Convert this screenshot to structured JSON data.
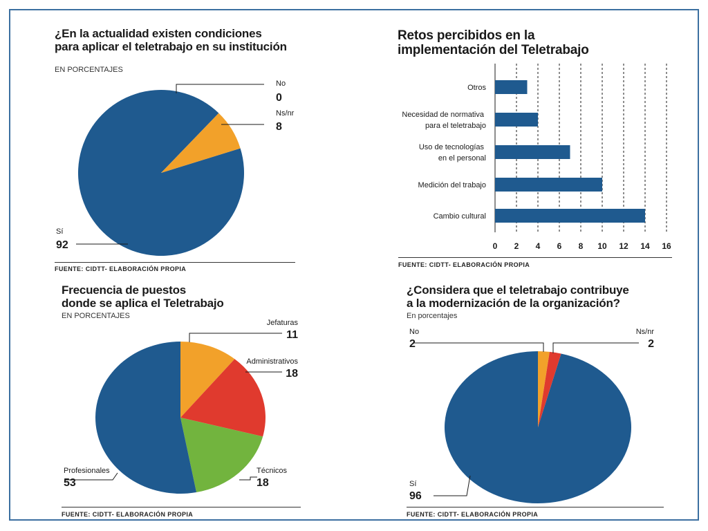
{
  "colors": {
    "blue": "#1f5a8f",
    "orange": "#f2a12a",
    "red": "#e03a2e",
    "green": "#72b43e",
    "border": "#3b6fa0"
  },
  "charts": {
    "c1": {
      "title1": "¿En la actualidad existen condiciones",
      "title2": "para aplicar el teletrabajo en su institución",
      "subtitle": "EN PORCENTAJES",
      "source": "FUENTE: CIDTT- ELABORACIÓN PROPIA"
    },
    "c2": {
      "title1": "Retos percibidos en la",
      "title2": "implementación del Teletrabajo",
      "source": "FUENTE: CIDTT- ELABORACIÓN PROPIA"
    },
    "c3": {
      "title1": "Frecuencia de puestos",
      "title2": "donde se aplica el Teletrabajo",
      "subtitle": "EN PORCENTAJES",
      "source": "FUENTE: CIDTT- ELABORACIÓN PROPIA"
    },
    "c4": {
      "title1": "¿Considera que el teletrabajo contribuye",
      "title2": "a la modernización de la organización?",
      "subtitle": "En porcentajes",
      "source": "FUENTE: CIDTT- ELABORACIÓN PROPIA"
    }
  },
  "chart_data": [
    {
      "type": "pie",
      "title": "¿En la actualidad existen condiciones para aplicar el teletrabajo en su institución",
      "subtitle": "EN PORCENTAJES",
      "slices": [
        {
          "label": "No",
          "value": 0,
          "color": "#f2a12a"
        },
        {
          "label": "Ns/nr",
          "value": 8,
          "color": "#f2a12a"
        },
        {
          "label": "Sí",
          "value": 92,
          "color": "#1f5a8f"
        }
      ]
    },
    {
      "type": "bar",
      "orientation": "horizontal",
      "title": "Retos percibidos en la implementación del Teletrabajo",
      "categories": [
        [
          "Otros"
        ],
        [
          "Necesidad de normativa",
          "para el teletrabajo"
        ],
        [
          "Uso de tecnologías",
          "en el personal"
        ],
        [
          "Medición del trabajo"
        ],
        [
          "Cambio cultural"
        ]
      ],
      "values": [
        3,
        4,
        7,
        10,
        14
      ],
      "xlim": [
        0,
        16
      ],
      "ticks": [
        0,
        2,
        4,
        6,
        8,
        10,
        12,
        14,
        16
      ],
      "grid": "dashed vertical",
      "color": "#1f5a8f"
    },
    {
      "type": "pie",
      "title": "Frecuencia de puestos donde se aplica el Teletrabajo",
      "subtitle": "EN PORCENTAJES",
      "slices": [
        {
          "label": "Jefaturas",
          "value": 11,
          "color": "#f2a12a"
        },
        {
          "label": "Administrativos",
          "value": 18,
          "color": "#e03a2e"
        },
        {
          "label": "Técnicos",
          "value": 18,
          "color": "#72b43e"
        },
        {
          "label": "Profesionales",
          "value": 53,
          "color": "#1f5a8f"
        }
      ]
    },
    {
      "type": "pie",
      "title": "¿Considera que el teletrabajo contribuye a la modernización de la organización?",
      "subtitle": "En porcentajes",
      "slices": [
        {
          "label": "No",
          "value": 2,
          "color": "#f2a12a"
        },
        {
          "label": "Ns/nr",
          "value": 2,
          "color": "#e03a2e"
        },
        {
          "label": "Sí",
          "value": 96,
          "color": "#1f5a8f"
        }
      ]
    }
  ]
}
